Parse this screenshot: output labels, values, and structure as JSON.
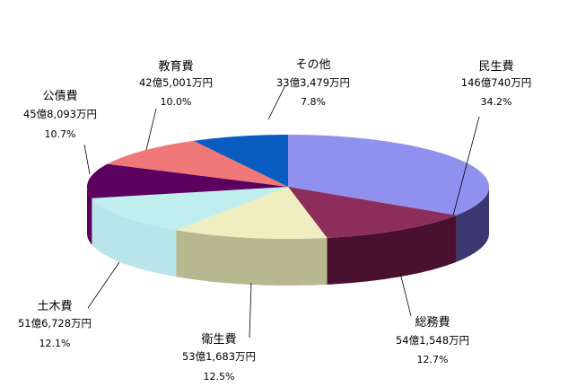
{
  "chart_data": {
    "type": "pie",
    "style": "3d-exploded-none",
    "slices": [
      {
        "name": "民生費",
        "amount": "146億740万円",
        "percent": "34.2%",
        "value": 34.2,
        "color": "#9090ee",
        "side": "#3a3870"
      },
      {
        "name": "総務費",
        "amount": "54億1,548万円",
        "percent": "12.7%",
        "value": 12.7,
        "color": "#8c2d5c",
        "side": "#4a1030"
      },
      {
        "name": "衛生費",
        "amount": "53億1,683万円",
        "percent": "12.5%",
        "value": 12.5,
        "color": "#eeeec0",
        "side": "#b8b890"
      },
      {
        "name": "土木費",
        "amount": "51億6,728万円",
        "percent": "12.1%",
        "value": 12.1,
        "color": "#c0eeee",
        "side": "#b8e4ea"
      },
      {
        "name": "公債費",
        "amount": "45億8,093万円",
        "percent": "10.7%",
        "value": 10.7,
        "color": "#5c0060",
        "side": "#5c0060"
      },
      {
        "name": "教育費",
        "amount": "42億5,001万円",
        "percent": "10.0%",
        "value": 10.0,
        "color": "#f07878",
        "side": "#a04040"
      },
      {
        "name": "その他",
        "amount": "33億3,479万円",
        "percent": "7.8%",
        "value": 7.8,
        "color": "#0a5cc0",
        "side": "#083c80"
      }
    ]
  }
}
